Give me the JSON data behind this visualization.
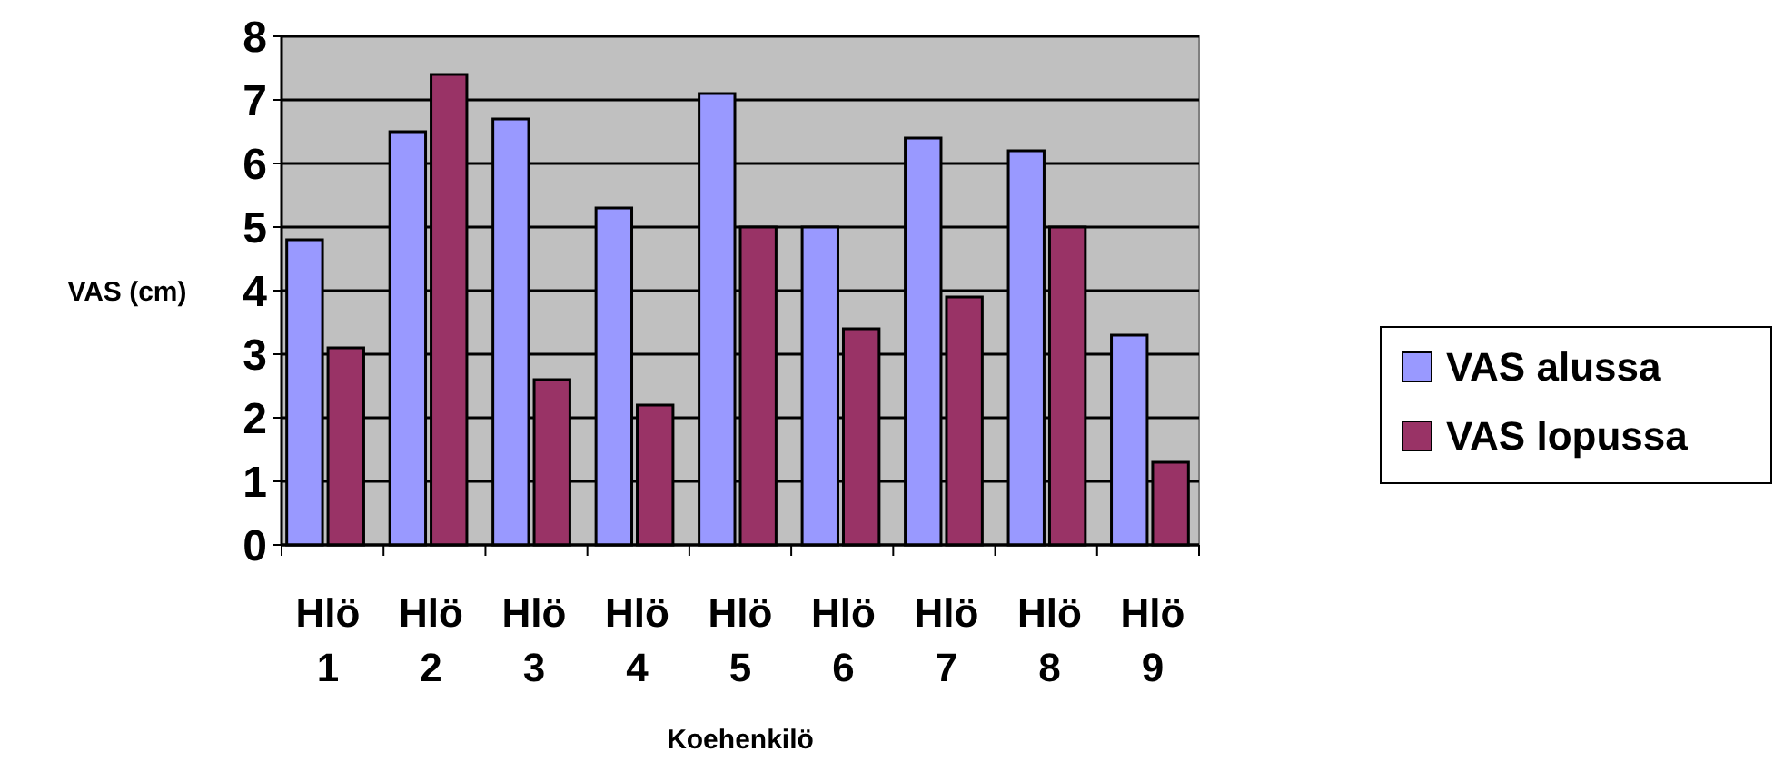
{
  "chart_data": {
    "type": "bar",
    "xlabel": "Koehenkilö",
    "ylabel": "VAS (cm)",
    "categories": [
      "Hlö 1",
      "Hlö 2",
      "Hlö 3",
      "Hlö 4",
      "Hlö 5",
      "Hlö 6",
      "Hlö 7",
      "Hlö 8",
      "Hlö 9"
    ],
    "series": [
      {
        "name": "VAS alussa",
        "color": "#9999ff",
        "values": [
          4.8,
          6.5,
          6.7,
          5.3,
          7.1,
          5.0,
          6.4,
          6.2,
          3.3
        ]
      },
      {
        "name": "VAS lopussa",
        "color": "#993366",
        "values": [
          3.1,
          7.4,
          2.6,
          2.2,
          5.0,
          3.4,
          3.9,
          5.0,
          1.3
        ]
      }
    ],
    "ylim": [
      0,
      8
    ],
    "yticks": [
      0,
      1,
      2,
      3,
      4,
      5,
      6,
      7,
      8
    ],
    "grid": "y",
    "legend": "right"
  }
}
